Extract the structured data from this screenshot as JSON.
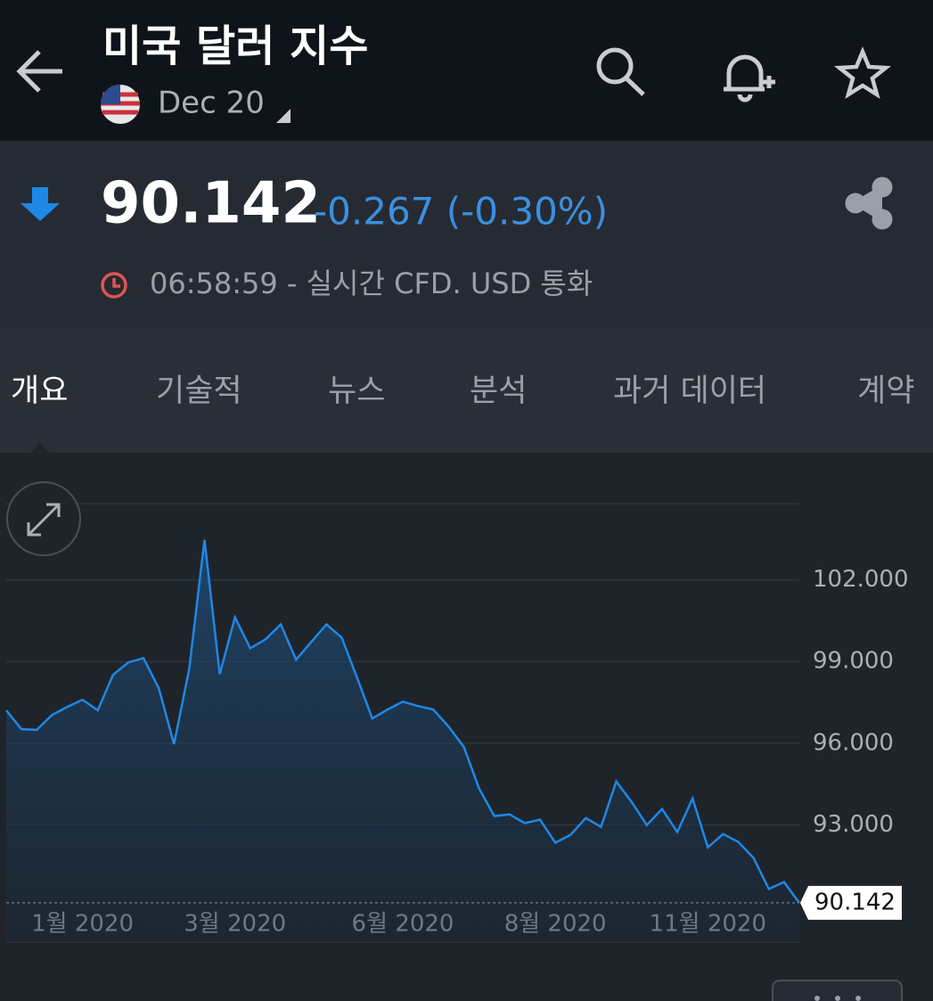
{
  "header": {
    "title": "미국 달러 지수",
    "contract": "Dec 20"
  },
  "quote": {
    "price": "90.142",
    "change": "-0.267 (-0.30%)",
    "time_note": "06:58:59 - 실시간 CFD. USD 통화"
  },
  "tabs": [
    "개요",
    "기술적",
    "뉴스",
    "분석",
    "과거 데이터",
    "계약"
  ],
  "chart_data": {
    "type": "line",
    "categories": [
      null,
      null,
      null,
      null,
      null,
      "1월 2020",
      null,
      null,
      null,
      null,
      null,
      null,
      null,
      null,
      null,
      "3월 2020",
      null,
      null,
      null,
      null,
      null,
      null,
      null,
      null,
      null,
      null,
      "6월 2020",
      null,
      null,
      null,
      null,
      null,
      null,
      null,
      null,
      null,
      "8월 2020",
      null,
      null,
      null,
      null,
      null,
      null,
      null,
      null,
      null,
      "11월 2020",
      null,
      null,
      null,
      null,
      null,
      null
    ],
    "values": [
      97.21,
      96.52,
      96.49,
      97.04,
      97.34,
      97.6,
      97.21,
      98.51,
      98.97,
      99.13,
      98.02,
      95.97,
      98.74,
      103.47,
      98.54,
      100.63,
      99.49,
      99.82,
      100.37,
      99.07,
      99.72,
      100.37,
      99.88,
      98.41,
      96.91,
      97.24,
      97.53,
      97.37,
      97.24,
      96.62,
      95.87,
      94.34,
      93.33,
      93.39,
      93.07,
      93.2,
      92.35,
      92.64,
      93.26,
      92.93,
      94.6,
      93.85,
      93.0,
      93.59,
      92.74,
      93.98,
      92.18,
      92.67,
      92.38,
      91.79,
      90.65,
      90.91,
      90.142
    ],
    "color": "#1e88e5",
    "ylim": [
      88.7,
      104.8
    ],
    "yticks": [
      {
        "value": 93,
        "label": "93.000"
      },
      {
        "value": 96,
        "label": "96.000"
      },
      {
        "value": 99,
        "label": "99.000"
      },
      {
        "value": 102,
        "label": "102.000"
      }
    ],
    "grid": true,
    "current": 90.142
  }
}
